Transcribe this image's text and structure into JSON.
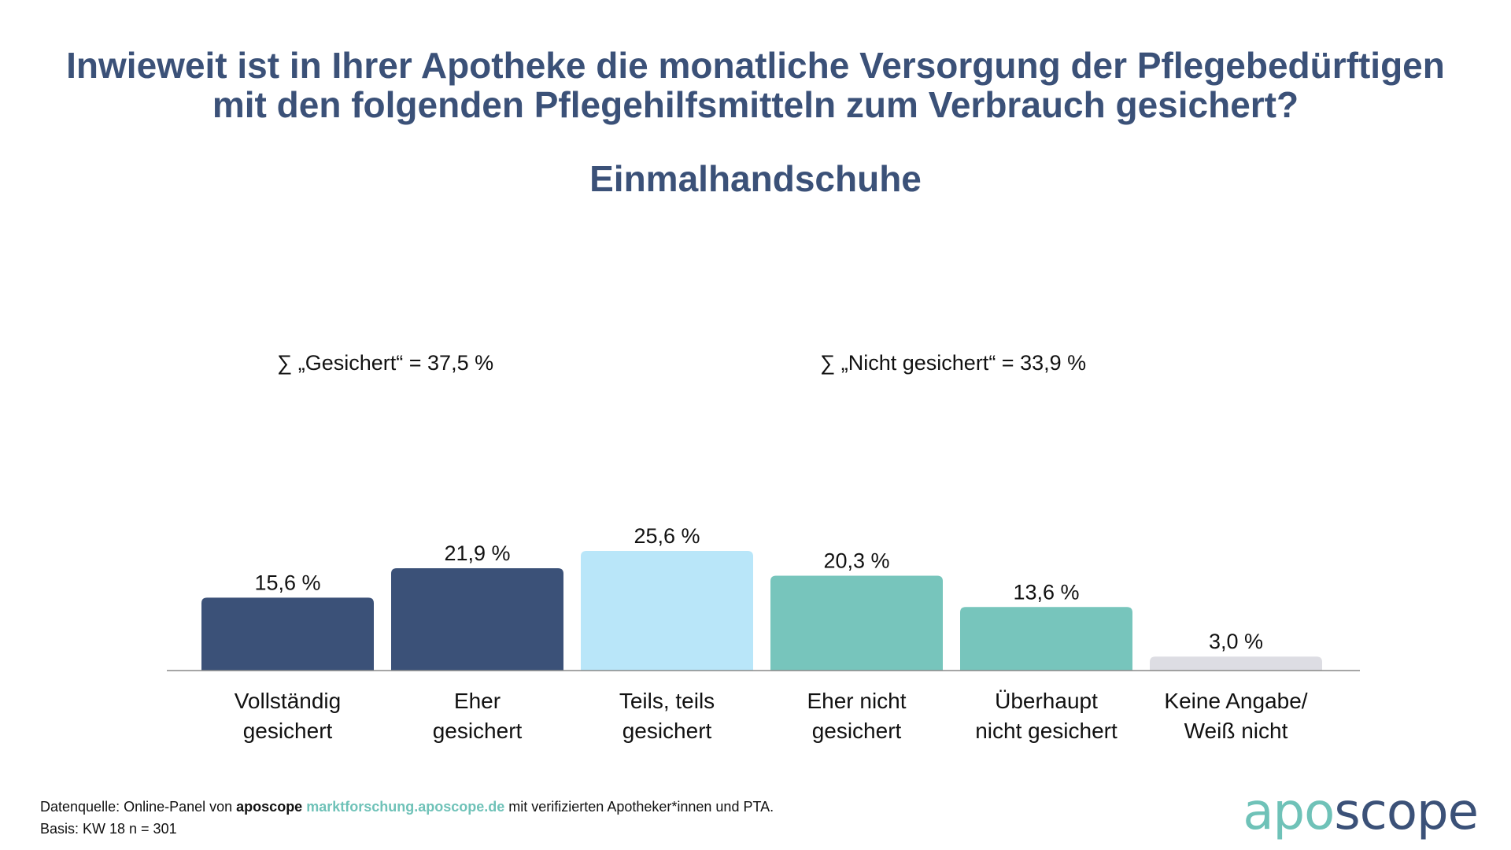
{
  "chart_data": {
    "type": "bar",
    "title": "Inwieweit ist in Ihrer Apotheke die monatliche Versorgung der Pflegebedürftigen mit den folgenden Pflegehilfsmitteln zum Verbrauch gesichert?",
    "title_line1": "Inwieweit ist in Ihrer Apotheke die monatliche Versorgung der Pflegebedürftigen",
    "title_line2": "mit den folgenden Pflegehilfsmitteln zum Verbrauch gesichert?",
    "subtitle": "Einmalhandschuhe",
    "categories": [
      [
        "Vollständig",
        "gesichert"
      ],
      [
        "Eher",
        "gesichert"
      ],
      [
        "Teils, teils",
        "gesichert"
      ],
      [
        "Eher nicht",
        "gesichert"
      ],
      [
        "Überhaupt",
        "nicht gesichert"
      ],
      [
        "Keine Angabe/",
        "Weiß nicht"
      ]
    ],
    "values": [
      15.6,
      21.9,
      25.6,
      20.3,
      13.6,
      3.0
    ],
    "value_labels": [
      "15,6 %",
      "21,9 %",
      "25,6 %",
      "20,3 %",
      "13,6 %",
      "3,0 %"
    ],
    "bar_colors": [
      "#3b5178",
      "#3b5178",
      "#b9e6f9",
      "#77c5bc",
      "#77c5bc",
      "#dddde3"
    ],
    "annotations": {
      "sum_gesichert": "∑ „Gesichert“ = 37,5 %",
      "sum_nicht_gesichert": "∑ „Nicht gesichert“ = 33,9 %"
    },
    "ylim": [
      0,
      25.6
    ],
    "grid": false,
    "xlabel": "",
    "ylabel": ""
  },
  "footer": {
    "source_prefix": "Datenquelle: Online-Panel von ",
    "source_brand": "aposcope",
    "source_link": "marktforschung.aposcope.de",
    "source_suffix": " mit verifizierten Apotheker*innen und PTA.",
    "basis": "Basis: KW 18 n = 301"
  },
  "logo": {
    "part1": "apo",
    "part2": "scope"
  },
  "colors": {
    "title": "#3b5178",
    "accent": "#6fc2b8"
  }
}
